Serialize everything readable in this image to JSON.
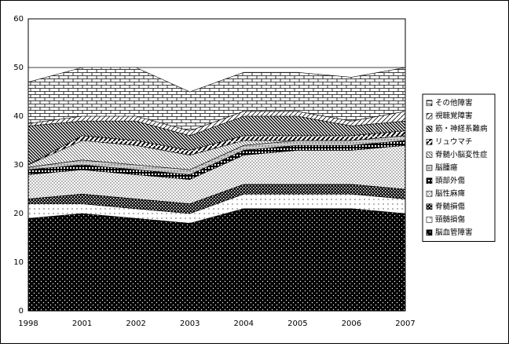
{
  "chart_data": {
    "type": "stacked-area",
    "categories": [
      "1998",
      "2001",
      "2002",
      "2003",
      "2004",
      "2005",
      "2006",
      "2007"
    ],
    "series": [
      {
        "name": "脳血管障害",
        "color": "#000000",
        "values": [
          19,
          20,
          19,
          18,
          21,
          21,
          21,
          20
        ]
      },
      {
        "name": "頸髄損傷",
        "color": "#000000",
        "values": [
          3,
          2,
          2,
          2,
          3,
          3,
          3,
          3
        ]
      },
      {
        "name": "脊髄損傷",
        "color": "#000000",
        "values": [
          1,
          2,
          2,
          2,
          2,
          2,
          2,
          2
        ]
      },
      {
        "name": "脳性麻痺",
        "color": "#000000",
        "values": [
          5,
          5,
          5,
          5,
          6,
          7,
          7,
          9
        ]
      },
      {
        "name": "頭部外傷",
        "color": "#000000",
        "values": [
          1,
          1,
          1,
          1,
          1,
          1,
          1,
          1
        ]
      },
      {
        "name": "脳腫瘍",
        "color": "#000000",
        "values": [
          0.5,
          1,
          1,
          1,
          1,
          1,
          1,
          1
        ]
      },
      {
        "name": "脊髄小脳変性症",
        "color": "#000000",
        "values": [
          0.5,
          4,
          4,
          3,
          1,
          0,
          0,
          0
        ]
      },
      {
        "name": "リュウマチ",
        "color": "#000000",
        "values": [
          0,
          1,
          1,
          1,
          1,
          1,
          1,
          1
        ]
      },
      {
        "name": "筋・神経系難病",
        "color": "#000000",
        "values": [
          8,
          3,
          4,
          3,
          4,
          4,
          2,
          2
        ]
      },
      {
        "name": "視聴覚障害",
        "color": "#000000",
        "values": [
          0.5,
          1,
          1,
          1,
          1,
          1,
          1,
          2
        ]
      },
      {
        "name": "その他障害",
        "color": "#000000",
        "values": [
          8.5,
          10,
          10,
          8,
          8,
          8,
          9,
          9
        ]
      }
    ],
    "ylim": [
      0,
      60
    ],
    "yticks": [
      0,
      10,
      20,
      30,
      40,
      50,
      60
    ],
    "grid": true,
    "legend": "right"
  }
}
